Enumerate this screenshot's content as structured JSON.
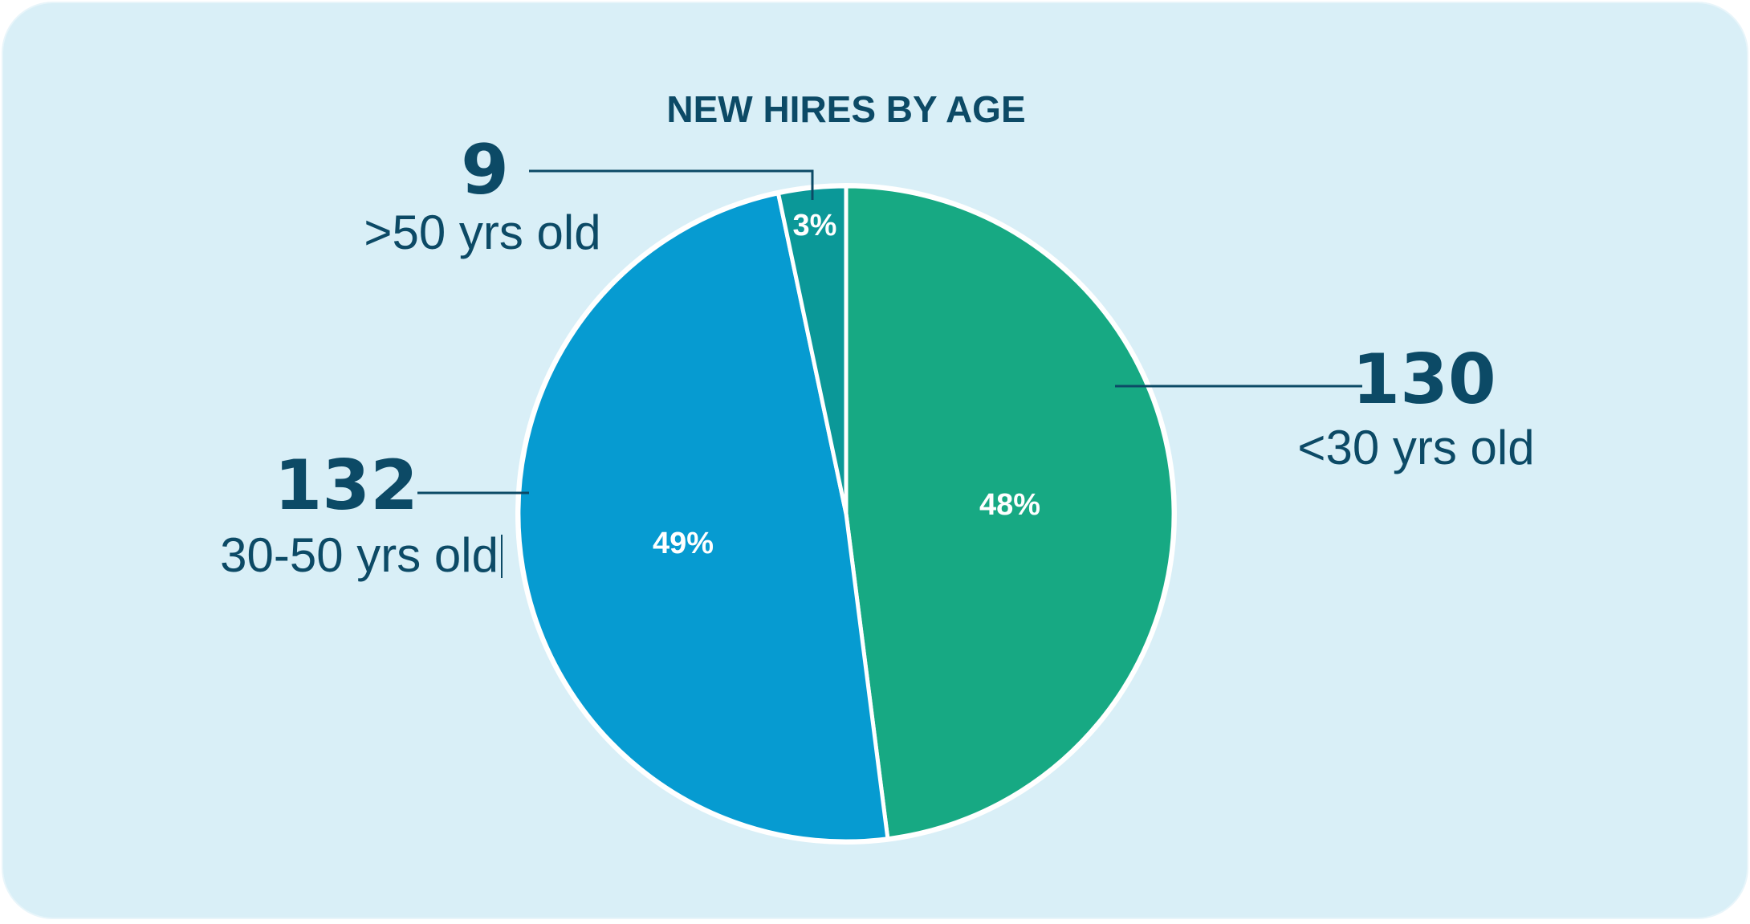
{
  "chart_data": {
    "type": "pie",
    "title": "NEW HIRES BY AGE",
    "slices": [
      {
        "label": "<30 yrs old",
        "value": 130,
        "percent_label": "48%",
        "color": "#17a983"
      },
      {
        "label": "30-50 yrs old",
        "value": 132,
        "percent_label": "49%",
        "color": "#069bd1"
      },
      {
        "label": ">50 yrs old",
        "value": 9,
        "percent_label": "3%",
        "color": "#0b9898"
      }
    ],
    "start": "12 o'clock",
    "direction": "clockwise"
  },
  "colors": {
    "background": "#d9eff7",
    "text": "#0c4a66",
    "leader_line": "#0c4a66",
    "slice_border": "#ffffff"
  }
}
